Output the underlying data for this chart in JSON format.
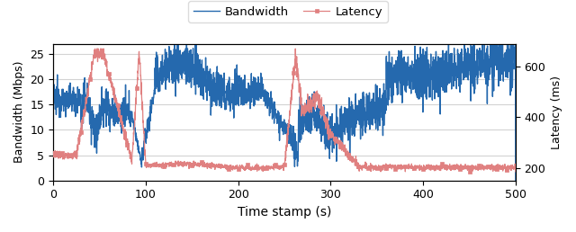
{
  "xlabel": "Time stamp (s)",
  "ylabel_left": "Bandwidth (Mbps)",
  "ylabel_right": "Latency (ms)",
  "xlim": [
    0,
    500
  ],
  "ylim_left": [
    0,
    27
  ],
  "ylim_right": [
    150,
    690
  ],
  "yticks_left": [
    0,
    5,
    10,
    15,
    20,
    25
  ],
  "yticks_right": [
    200,
    400,
    600
  ],
  "xticks": [
    0,
    100,
    200,
    300,
    400,
    500
  ],
  "bandwidth_color": "#2569ae",
  "latency_color": "#e08080",
  "legend_labels": [
    "Bandwidth",
    "Latency"
  ],
  "figsize": [
    6.4,
    2.58
  ],
  "dpi": 100
}
